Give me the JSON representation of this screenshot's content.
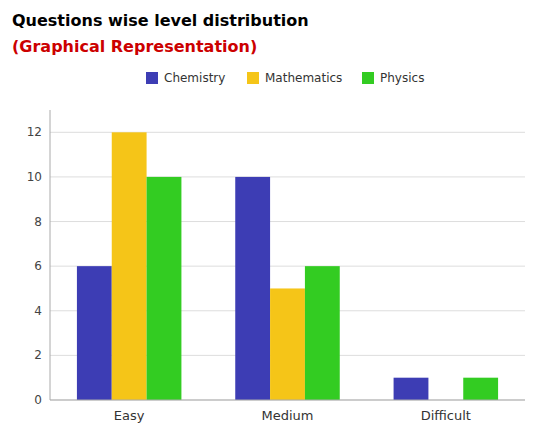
{
  "chart_data": {
    "type": "bar",
    "title": "Questions wise level distribution",
    "subtitle": "(Graphical Representation)",
    "categories": [
      "Easy",
      "Medium",
      "Difficult"
    ],
    "series": [
      {
        "name": "Chemistry",
        "color": "#3d3db4",
        "values": [
          6,
          10,
          1
        ]
      },
      {
        "name": "Mathematics",
        "color": "#f5c518",
        "values": [
          12,
          5,
          0
        ]
      },
      {
        "name": "Physics",
        "color": "#33cc22",
        "values": [
          10,
          6,
          1
        ]
      }
    ],
    "ylim": [
      0,
      13
    ],
    "yticks": [
      0,
      2,
      4,
      6,
      8,
      10,
      12
    ],
    "grid": true,
    "legend": "top"
  }
}
